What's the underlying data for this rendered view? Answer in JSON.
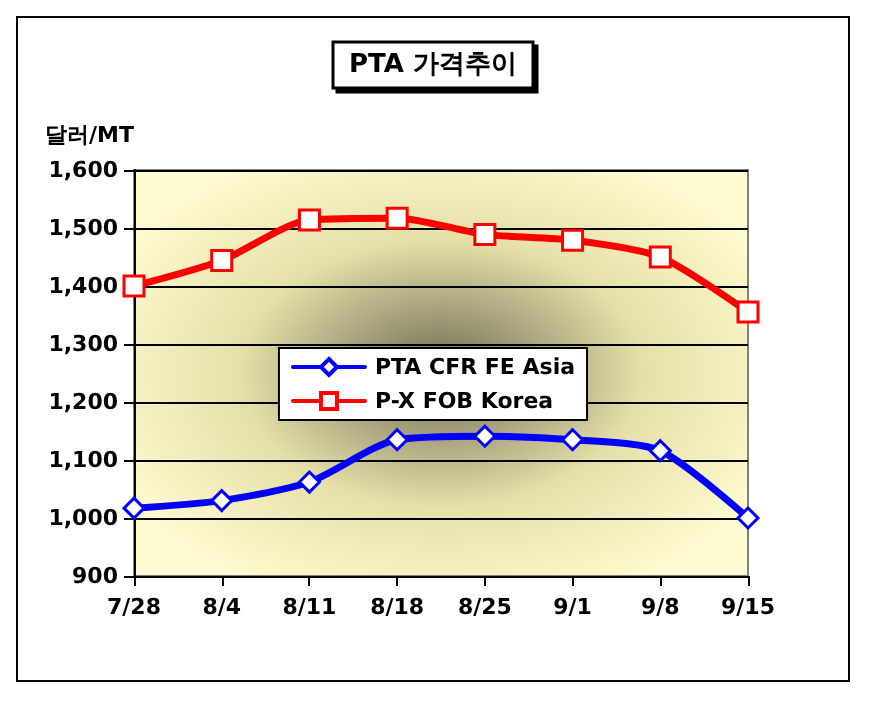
{
  "chart_data": {
    "type": "line",
    "title": "PTA 가격추이",
    "ylabel": "달러/MT",
    "categories": [
      "7/28",
      "8/4",
      "8/11",
      "8/18",
      "8/25",
      "9/1",
      "9/8",
      "9/15"
    ],
    "series": [
      {
        "name": "PTA CFR FE Asia",
        "color": "#0000ff",
        "marker": "diamond",
        "values": [
          1017,
          1030,
          1062,
          1135,
          1141,
          1135,
          1116,
          1000
        ]
      },
      {
        "name": "P-X FOB Korea",
        "color": "#ff0000",
        "marker": "square",
        "values": [
          1400,
          1444,
          1514,
          1517,
          1489,
          1479,
          1450,
          1355
        ]
      }
    ],
    "ylim": [
      900,
      1600
    ],
    "yticks": [
      900,
      {
        "value": 1000,
        "label": "1,000"
      },
      {
        "value": 1100,
        "label": "1,100"
      },
      {
        "value": 1200,
        "label": "1,200"
      },
      {
        "value": 1300,
        "label": "1,300"
      },
      {
        "value": 1400,
        "label": "1,400"
      },
      {
        "value": 1500,
        "label": "1,500"
      },
      {
        "value": 1600,
        "label": "1,600"
      }
    ],
    "grid": "y",
    "legend": "center",
    "line_style": "solid"
  }
}
